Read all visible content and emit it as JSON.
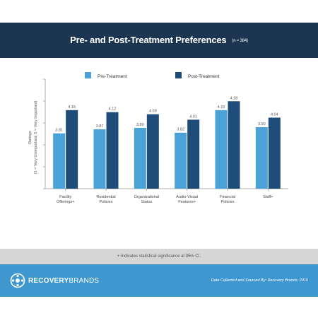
{
  "header": {
    "title": "Pre- and Post-Treatment Preferences",
    "sample": "(n = 384)"
  },
  "note": "+ Indicates statistical significance at 95% CI.",
  "footer": {
    "logo_bold": "RECOVERY",
    "logo_light": "BRANDS",
    "credit": "Data Collected and Sourced By: Recovery Brands, 2016"
  },
  "colors": {
    "header_bg": "#1c3652",
    "pre": "#4aa2d9",
    "post": "#1f4d79",
    "footer_bg": "#3e97cf",
    "note_bg": "#d6d6d6"
  },
  "chart_data": {
    "type": "bar",
    "categories": [
      [
        "Facility",
        "Offerings+"
      ],
      [
        "Residential",
        "Policies"
      ],
      [
        "Organizational",
        "Status"
      ],
      [
        "Audio-Visual",
        "Features+"
      ],
      [
        "Financial",
        "Policies"
      ],
      [
        "Staff+"
      ]
    ],
    "series": [
      {
        "name": "Pre-Treatment",
        "values": [
          3.81,
          3.87,
          3.89,
          3.82,
          4.15,
          3.9
        ]
      },
      {
        "name": "Post-Treatment",
        "values": [
          4.15,
          4.12,
          4.09,
          4.01,
          4.28,
          4.04
        ]
      }
    ],
    "ylabel_line1": "Ratings",
    "ylabel_line2": "(1 = Very Unimportant; 5 = Very Important)",
    "ylim": [
      3.0,
      4.5
    ],
    "grid": false,
    "legend_position": "top-center"
  }
}
